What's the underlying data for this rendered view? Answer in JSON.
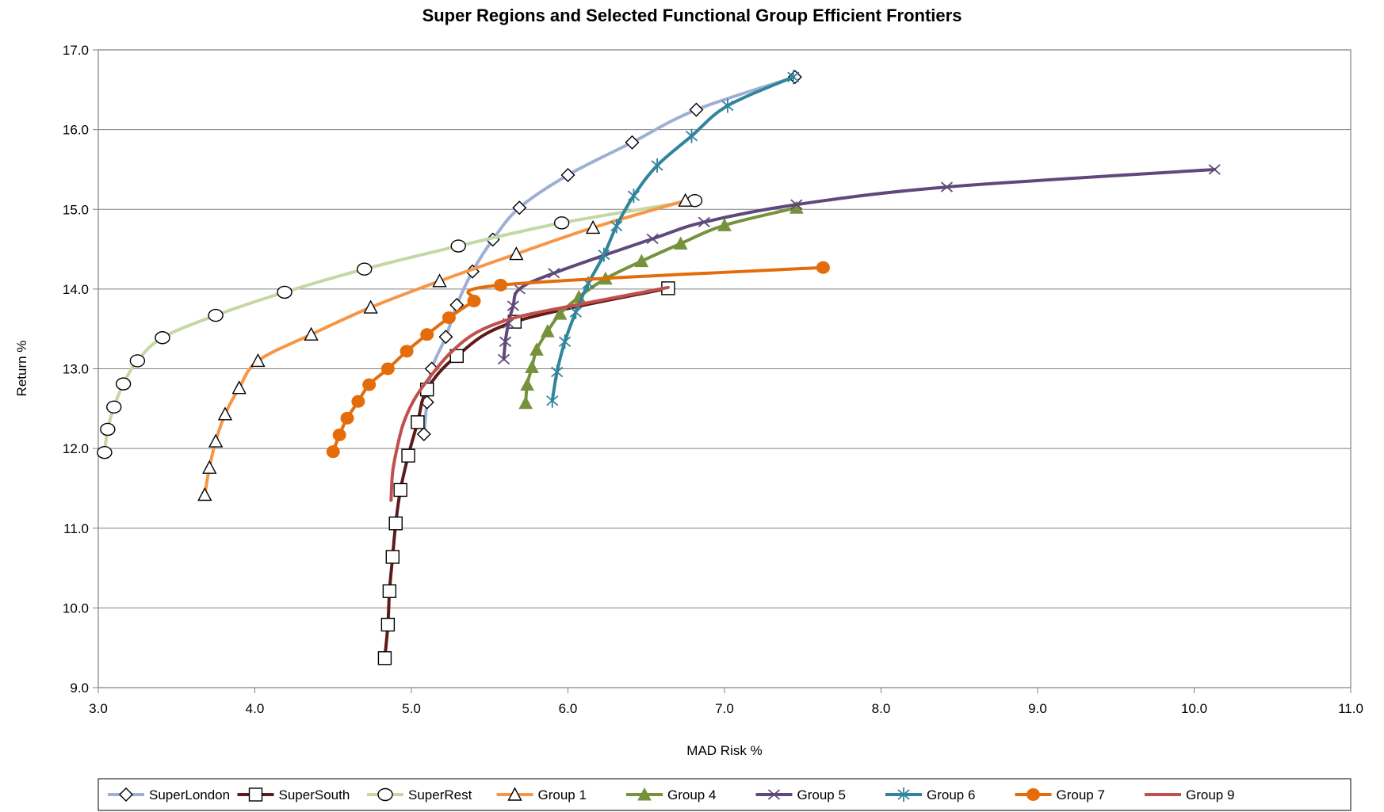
{
  "chart_data": {
    "type": "line",
    "title": "Super Regions and Selected Functional Group Efficient Frontiers",
    "xlabel": "MAD Risk %",
    "ylabel": "Return %",
    "xlim": [
      3.0,
      11.0
    ],
    "ylim": [
      9.0,
      17.0
    ],
    "x_ticks": [
      "3.0",
      "4.0",
      "5.0",
      "6.0",
      "7.0",
      "8.0",
      "9.0",
      "10.0",
      "11.0"
    ],
    "y_ticks": [
      "9.0",
      "10.0",
      "11.0",
      "12.0",
      "13.0",
      "14.0",
      "15.0",
      "16.0",
      "17.0"
    ],
    "grid": "horizontal",
    "legend_position": "bottom",
    "series": [
      {
        "name": "SuperLondon",
        "color": "#9DB0D4",
        "marker": "diamond-open",
        "x": [
          5.08,
          5.1,
          5.13,
          5.22,
          5.29,
          5.39,
          5.52,
          5.69,
          6.0,
          6.41,
          6.82,
          7.45
        ],
        "y": [
          12.18,
          12.58,
          13.0,
          13.4,
          13.8,
          14.22,
          14.62,
          15.02,
          15.43,
          15.84,
          16.25,
          16.66
        ]
      },
      {
        "name": "SuperSouth",
        "color": "#5E1B1B",
        "marker": "square-open",
        "x": [
          4.83,
          4.85,
          4.86,
          4.88,
          4.9,
          4.93,
          4.98,
          5.04,
          5.1,
          5.29,
          5.66,
          6.64
        ],
        "y": [
          9.37,
          9.79,
          10.21,
          10.64,
          11.06,
          11.48,
          11.91,
          12.33,
          12.74,
          13.16,
          13.59,
          14.01
        ]
      },
      {
        "name": "SuperRest",
        "color": "#C4D7A4",
        "marker": "circle-open",
        "x": [
          3.04,
          3.06,
          3.1,
          3.16,
          3.25,
          3.41,
          3.75,
          4.19,
          4.7,
          5.3,
          5.96,
          6.81
        ],
        "y": [
          11.95,
          12.24,
          12.52,
          12.81,
          13.1,
          13.39,
          13.67,
          13.96,
          14.25,
          14.54,
          14.83,
          15.11
        ]
      },
      {
        "name": "Group 1",
        "color": "#F79646",
        "marker": "triangle-open",
        "x": [
          3.68,
          3.71,
          3.75,
          3.81,
          3.9,
          4.02,
          4.36,
          4.74,
          5.18,
          5.67,
          6.16,
          6.75
        ],
        "y": [
          11.42,
          11.76,
          12.09,
          12.43,
          12.76,
          13.1,
          13.43,
          13.77,
          14.1,
          14.44,
          14.77,
          15.11
        ]
      },
      {
        "name": "Group 4",
        "color": "#76923C",
        "marker": "triangle-filled",
        "x": [
          5.73,
          5.74,
          5.77,
          5.8,
          5.87,
          5.95,
          6.07,
          6.24,
          6.47,
          6.72,
          7.0,
          7.46
        ],
        "y": [
          12.57,
          12.8,
          13.02,
          13.24,
          13.47,
          13.69,
          13.9,
          14.13,
          14.35,
          14.57,
          14.8,
          15.02
        ]
      },
      {
        "name": "Group 5",
        "color": "#60497A",
        "marker": "x",
        "x": [
          5.59,
          5.6,
          5.62,
          5.65,
          5.69,
          5.91,
          6.54,
          6.87,
          7.46,
          8.42,
          10.13
        ],
        "y": [
          13.12,
          13.34,
          13.57,
          13.79,
          14.0,
          14.2,
          14.63,
          14.84,
          15.06,
          15.28,
          15.5
        ]
      },
      {
        "name": "Group 6",
        "color": "#31849B",
        "marker": "star",
        "x": [
          5.9,
          5.93,
          5.98,
          6.05,
          6.13,
          6.23,
          6.31,
          6.42,
          6.57,
          6.79,
          7.02,
          7.44
        ],
        "y": [
          12.6,
          12.96,
          13.34,
          13.71,
          14.07,
          14.43,
          14.79,
          15.17,
          15.55,
          15.92,
          16.3,
          16.66
        ]
      },
      {
        "name": "Group 7",
        "color": "#E46C0A",
        "marker": "circle-filled",
        "x": [
          4.5,
          4.54,
          4.59,
          4.66,
          4.73,
          4.85,
          4.97,
          5.1,
          5.24,
          5.4,
          5.57,
          7.63
        ],
        "y": [
          11.96,
          12.17,
          12.38,
          12.59,
          12.8,
          13.0,
          13.22,
          13.43,
          13.64,
          13.85,
          14.05,
          14.27
        ]
      },
      {
        "name": "Group 9",
        "color": "#C0504D",
        "marker": "none",
        "x": [
          4.87,
          4.88,
          4.91,
          4.95,
          5.02,
          5.12,
          5.25,
          5.42,
          5.66,
          6.0,
          6.64
        ],
        "y": [
          11.35,
          11.7,
          12.02,
          12.32,
          12.62,
          12.9,
          13.2,
          13.46,
          13.64,
          13.78,
          14.02
        ]
      }
    ]
  }
}
